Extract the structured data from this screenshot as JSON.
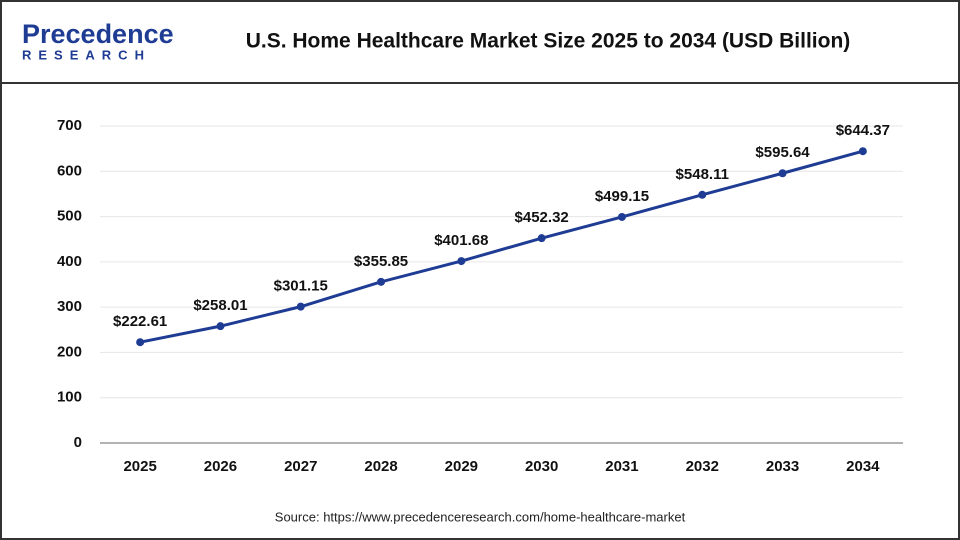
{
  "logo": {
    "name": "Precedence",
    "tagline": "RESEARCH"
  },
  "chart_data": {
    "type": "line",
    "title": "U.S. Home Healthcare Market Size 2025 to 2034 (USD Billion)",
    "source": "Source: https://www.precedenceresearch.com/home-healthcare-market",
    "categories": [
      "2025",
      "2026",
      "2027",
      "2028",
      "2029",
      "2030",
      "2031",
      "2032",
      "2033",
      "2034"
    ],
    "values": [
      222.61,
      258.01,
      301.15,
      355.85,
      401.68,
      452.32,
      499.15,
      548.11,
      595.64,
      644.37
    ],
    "value_labels": [
      "$222.61",
      "$258.01",
      "$301.15",
      "$355.85",
      "$401.68",
      "$452.32",
      "$499.15",
      "$548.11",
      "$595.64",
      "$644.37"
    ],
    "color": "#1f3c94",
    "ylim": [
      0,
      700
    ],
    "yticks": [
      0,
      100,
      200,
      300,
      400,
      500,
      600,
      700
    ],
    "grid": true
  }
}
